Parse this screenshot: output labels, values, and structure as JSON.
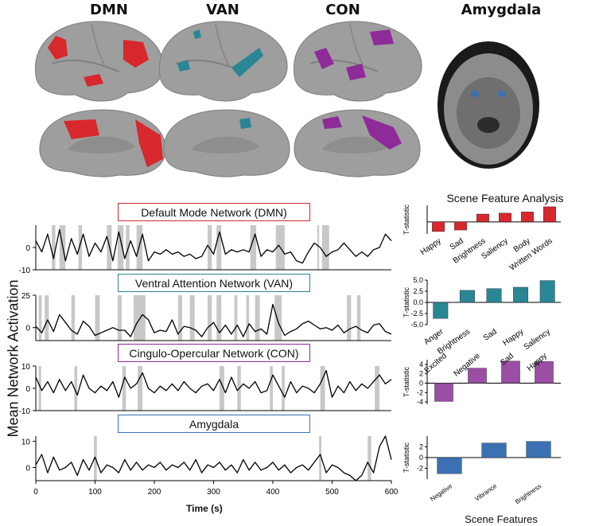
{
  "header": {
    "dmn": "DMN",
    "van": "VAN",
    "con": "CON",
    "amygdala": "Amygdala"
  },
  "colors": {
    "dmn": "#d7282d",
    "van": "#2a8694",
    "con": "#8f2a99",
    "amygdala": "#3b70b3",
    "brain": "#9e9e9e",
    "shade": "#c8c8c8"
  },
  "left_panel": {
    "ylabel": "Mean Network Activation",
    "xlabel": "Time (s)"
  },
  "right_panel": {
    "title": "Scene Feature Analysis",
    "xlabel": "Scene Features"
  },
  "chart_data": [
    {
      "type": "line",
      "title": "Default Mode Network (DMN)",
      "color": "#d7282d",
      "xlim": [
        0,
        600
      ],
      "ylim": [
        -10,
        10
      ],
      "yticks": [
        0,
        -10
      ],
      "shaded_intervals": [
        [
          27,
          33
        ],
        [
          40,
          50
        ],
        [
          72,
          78
        ],
        [
          120,
          128
        ],
        [
          138,
          148
        ],
        [
          152,
          158
        ],
        [
          170,
          180
        ],
        [
          290,
          297
        ],
        [
          305,
          313
        ],
        [
          362,
          372
        ],
        [
          405,
          420
        ],
        [
          475,
          478
        ],
        [
          483,
          495
        ]
      ],
      "x": [
        0,
        10,
        20,
        30,
        40,
        50,
        60,
        70,
        80,
        90,
        100,
        110,
        120,
        130,
        140,
        150,
        160,
        170,
        180,
        190,
        200,
        210,
        220,
        230,
        240,
        250,
        260,
        270,
        280,
        290,
        300,
        310,
        320,
        330,
        340,
        350,
        360,
        370,
        380,
        390,
        400,
        410,
        420,
        430,
        440,
        450,
        460,
        470,
        480,
        490,
        500,
        510,
        520,
        530,
        540,
        550,
        560,
        570,
        580,
        590,
        600
      ],
      "values": [
        3,
        -2,
        6,
        -5,
        8,
        -6,
        4,
        -3,
        6,
        -4,
        2,
        -2,
        5,
        -6,
        7,
        -5,
        3,
        -4,
        6,
        -6,
        -2,
        -3,
        -1,
        -3,
        -2,
        -4,
        -3,
        -5,
        -4,
        1,
        -3,
        7,
        -3,
        -1,
        -2,
        -1,
        -2,
        6,
        -4,
        -1,
        -2,
        1,
        -3,
        -2,
        -6,
        -7,
        -2,
        2,
        0,
        -4,
        -2,
        -1,
        2,
        -1,
        -4,
        -2,
        -4,
        -1,
        0,
        6,
        3
      ]
    },
    {
      "type": "line",
      "title": "Ventral Attention Network (VAN)",
      "color": "#2a8694",
      "xlim": [
        0,
        600
      ],
      "ylim": [
        -10,
        25
      ],
      "yticks": [
        25,
        0
      ],
      "shaded_intervals": [
        [
          5,
          10
        ],
        [
          15,
          22
        ],
        [
          60,
          66
        ],
        [
          100,
          108
        ],
        [
          138,
          145
        ],
        [
          165,
          185
        ],
        [
          240,
          247
        ],
        [
          260,
          268
        ],
        [
          290,
          297
        ],
        [
          305,
          313
        ],
        [
          335,
          340
        ],
        [
          355,
          360
        ],
        [
          370,
          378
        ],
        [
          403,
          415
        ],
        [
          525,
          532
        ],
        [
          542,
          548
        ]
      ],
      "x": [
        0,
        10,
        20,
        30,
        40,
        50,
        60,
        70,
        80,
        90,
        100,
        110,
        120,
        130,
        140,
        150,
        160,
        170,
        180,
        190,
        200,
        210,
        220,
        230,
        240,
        250,
        260,
        270,
        280,
        290,
        300,
        310,
        320,
        330,
        340,
        350,
        360,
        370,
        380,
        390,
        400,
        410,
        420,
        430,
        440,
        450,
        460,
        470,
        480,
        490,
        500,
        510,
        520,
        530,
        540,
        550,
        560,
        570,
        580,
        590,
        600
      ],
      "values": [
        1,
        -4,
        6,
        -3,
        10,
        4,
        -2,
        -5,
        5,
        1,
        -6,
        -4,
        -2,
        0,
        -2,
        -2,
        -7,
        3,
        10,
        6,
        -4,
        -2,
        -3,
        6,
        -5,
        1,
        0,
        -2,
        -7,
        0,
        4,
        -4,
        2,
        -5,
        2,
        -7,
        3,
        -3,
        -1,
        -5,
        18,
        3,
        -6,
        -3,
        -1,
        3,
        5,
        2,
        -1,
        0,
        -2,
        2,
        -4,
        -1,
        1,
        -2,
        -4,
        2,
        3,
        -3,
        -5
      ]
    },
    {
      "type": "line",
      "title": "Cingulo-Opercular Network (CON)",
      "color": "#8f2a99",
      "xlim": [
        0,
        600
      ],
      "ylim": [
        -10,
        10
      ],
      "yticks": [
        10,
        0,
        -10
      ],
      "shaded_intervals": [
        [
          5,
          9
        ],
        [
          65,
          70
        ],
        [
          146,
          152
        ],
        [
          172,
          180
        ],
        [
          310,
          318
        ],
        [
          340,
          346
        ],
        [
          395,
          400
        ],
        [
          415,
          420
        ],
        [
          480,
          488
        ],
        [
          572,
          580
        ]
      ],
      "x": [
        0,
        10,
        20,
        30,
        40,
        50,
        60,
        70,
        80,
        90,
        100,
        110,
        120,
        130,
        140,
        150,
        160,
        170,
        180,
        190,
        200,
        210,
        220,
        230,
        240,
        250,
        260,
        270,
        280,
        290,
        300,
        310,
        320,
        330,
        340,
        350,
        360,
        370,
        380,
        390,
        400,
        410,
        420,
        430,
        440,
        450,
        460,
        470,
        480,
        490,
        500,
        510,
        520,
        530,
        540,
        550,
        560,
        570,
        580,
        590,
        600
      ],
      "values": [
        5,
        -1,
        3,
        -2,
        4,
        -1,
        3,
        -3,
        6,
        0,
        -2,
        1,
        -1,
        3,
        -4,
        5,
        0,
        2,
        7,
        0,
        -2,
        1,
        -1,
        2,
        -1,
        3,
        0,
        -2,
        1,
        2,
        -1,
        4,
        -2,
        5,
        -1,
        2,
        0,
        3,
        -2,
        -1,
        6,
        1,
        -4,
        3,
        -2,
        1,
        0,
        -2,
        2,
        8,
        -4,
        1,
        -2,
        3,
        -1,
        2,
        0,
        3,
        6,
        2,
        4
      ]
    },
    {
      "type": "line",
      "title": "Amygdala",
      "color": "#3b70b3",
      "xlim": [
        0,
        600
      ],
      "ylim": [
        -5,
        12
      ],
      "yticks": [
        10,
        0
      ],
      "xticks": [
        0,
        100,
        200,
        300,
        400,
        500,
        600
      ],
      "shaded_intervals": [
        [
          98,
          103
        ],
        [
          478,
          482
        ],
        [
          560,
          566
        ]
      ],
      "x": [
        0,
        10,
        20,
        30,
        40,
        50,
        60,
        70,
        80,
        90,
        100,
        110,
        120,
        130,
        140,
        150,
        160,
        170,
        180,
        190,
        200,
        210,
        220,
        230,
        240,
        250,
        260,
        270,
        280,
        290,
        300,
        310,
        320,
        330,
        340,
        350,
        360,
        370,
        380,
        390,
        400,
        410,
        420,
        430,
        440,
        450,
        460,
        470,
        480,
        490,
        500,
        510,
        520,
        530,
        540,
        550,
        560,
        570,
        580,
        590,
        600
      ],
      "values": [
        1,
        5,
        -2,
        4,
        -1,
        0,
        2,
        -3,
        3,
        -1,
        4,
        -2,
        1,
        0,
        -2,
        3,
        -1,
        2,
        -1,
        1,
        0,
        2,
        -1,
        1,
        0,
        2,
        -1,
        3,
        -2,
        1,
        0,
        2,
        -1,
        1,
        -2,
        3,
        -1,
        2,
        -1,
        0,
        2,
        -1,
        1,
        -2,
        0,
        1,
        -1,
        2,
        5,
        -2,
        1,
        0,
        -2,
        -3,
        -5,
        -3,
        2,
        -2,
        8,
        12,
        3
      ]
    },
    {
      "type": "bar",
      "title": "",
      "color": "#d7282d",
      "ylabel": "T-statistic",
      "categories": [
        "Happy",
        "Sad",
        "Brightness",
        "Saliency",
        "Body",
        "Written Words"
      ],
      "values": [
        -3.2,
        -2.7,
        2.6,
        2.9,
        3.3,
        5.0
      ],
      "ylim": [
        -4,
        5.5
      ]
    },
    {
      "type": "bar",
      "title": "",
      "color": "#2a8694",
      "ylabel": "T-statistic",
      "categories": [
        "Anger",
        "Brightness",
        "Sad",
        "Happy",
        "Saliency"
      ],
      "values": [
        -3.6,
        2.7,
        3.1,
        3.4,
        4.9
      ],
      "ylim": [
        -5,
        5
      ],
      "yticks": [
        5.0,
        2.5,
        0.0,
        -2.5,
        -5.0
      ]
    },
    {
      "type": "bar",
      "title": "",
      "color": "#9a4fa5",
      "ylabel": "T-statistic",
      "categories": [
        "Excited",
        "Negative",
        "Sad",
        "Happy"
      ],
      "values": [
        -3.9,
        3.2,
        4.7,
        4.6
      ],
      "ylim": [
        -4.5,
        5
      ],
      "yticks": [
        4,
        2,
        0,
        -2,
        -4
      ]
    },
    {
      "type": "bar",
      "title": "",
      "color": "#3b70b3",
      "ylabel": "T-statistic",
      "categories": [
        "Negative",
        "Vibrance",
        "Brightness"
      ],
      "values": [
        -3.0,
        2.7,
        3.0
      ],
      "ylim": [
        -4,
        4
      ],
      "yticks": [
        2,
        0,
        -2
      ]
    }
  ]
}
